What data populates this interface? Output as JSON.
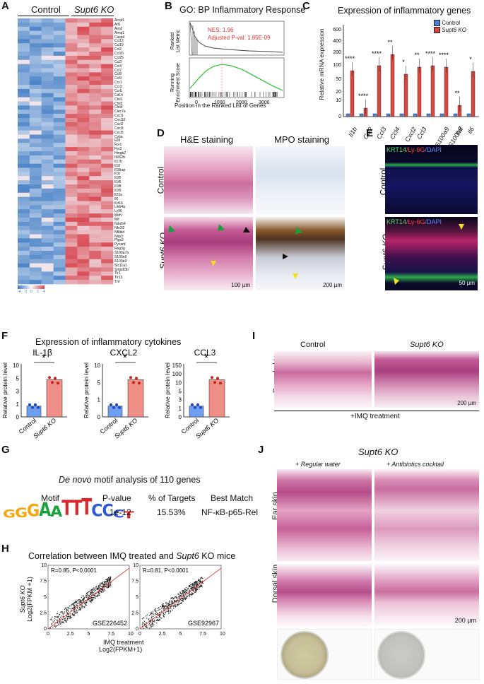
{
  "panel_labels": [
    "A",
    "B",
    "C",
    "D",
    "E",
    "F",
    "G",
    "H",
    "I",
    "J"
  ],
  "A": {
    "group_control": "Control",
    "group_ko": "Supt6 KO",
    "genes": [
      "Acod1",
      "Aif1",
      "Aim2",
      "Aimp1",
      "Casp4",
      "Ccl12",
      "Ccl19",
      "Ccl2",
      "Ccl20",
      "Ccl25",
      "Ccl3",
      "Ccl4",
      "Ccl7",
      "Ccl8",
      "Ccl9",
      "Ccr1",
      "Ccr3",
      "Ccr5",
      "Cd14",
      "Chil1",
      "Chil3",
      "Chil4",
      "Clec7a",
      "Cxcl1",
      "Cxcl10",
      "Cxcl2",
      "Cxcl3",
      "Cxcl5",
      "Cyba",
      "Eli3",
      "Fpr1",
      "Fpr2",
      "Hmgb2",
      "Ifi202b",
      "Il17b",
      "Il18",
      "Il18rap",
      "Il1b",
      "Il1f5",
      "Il1f6",
      "Il1f8",
      "Il1f9",
      "Il23a",
      "Il6",
      "Krt16",
      "Lilrb4a",
      "Ly96",
      "Mefv",
      "Mif",
      "Ndufs4",
      "Nfe2l2",
      "Nfkbid",
      "Nlrp3",
      "Ptgs2",
      "Pycard",
      "Reg3g",
      "S100a7a",
      "S100a8",
      "S100a9",
      "Slc11a1",
      "Smpdl3b",
      "Tlr1",
      "Tlr13",
      "Tnf"
    ],
    "scale_ticks": [
      "-4",
      "-2",
      "0",
      "2",
      "4"
    ],
    "colors": {
      "low": "#3b78c2",
      "mid": "#f4f6fb",
      "high": "#d6434c"
    }
  },
  "B": {
    "title": "GO: BP Inflammatory Response",
    "nes": "NES: 1.96",
    "pval": "Adjusted P-val: 1.85E-09",
    "ylabel_top": "Ranked List Metric",
    "ylabel_bottom": "Running Enrichment Score",
    "xlabel": "Position in the Ranked List of Genes",
    "xticks": [
      "0",
      "1000",
      "2000",
      "3000"
    ],
    "y_top": [
      "5",
      "0"
    ],
    "y_bottom": [
      "0.4",
      "0.2",
      "0.0"
    ]
  },
  "C": {
    "title": "Expression of inflammatory genes",
    "ylabel": "Relative mRNA expression",
    "legend": [
      "Control",
      "Supt6 KO"
    ],
    "genes": [
      "Il1b",
      "Ccl2",
      "Ccl3",
      "Ccl4",
      "Cxcl2",
      "Ccl3",
      "S100a9",
      "S100a8",
      "Tnf",
      "Il6"
    ],
    "stars": [
      "****",
      "****",
      "****",
      "**",
      "*",
      "**",
      "****",
      "****",
      "**",
      "*"
    ],
    "yticks": [
      "600",
      "400",
      "200",
      "100",
      "50",
      "20",
      "10",
      "0"
    ],
    "colors": {
      "control": "#4a7fd4",
      "ko": "#d9473f"
    }
  },
  "D": {
    "he_label": "H&E staining",
    "mpo_label": "MPO staining",
    "row_control": "Control",
    "row_ko": "Supt6 KO",
    "scale1": "100 µm",
    "scale2": "200 µm"
  },
  "E": {
    "stain_krt": "KRT14",
    "stain_ly": "/Ly-6G",
    "stain_dapi": "/DAPI",
    "row_control": "Control",
    "row_ko": "Supt6 KO",
    "scale": "50 µm"
  },
  "F": {
    "title": "Expression of inflammatory cytokines",
    "ylabel": "Relative protein level",
    "xlabels": [
      "Control",
      "Supt6 KO"
    ],
    "star": "*",
    "charts": [
      {
        "name": "IL-1β",
        "yticks": [
          "0",
          "1",
          "3",
          "5",
          "10"
        ],
        "control": 1,
        "ko": 5
      },
      {
        "name": "CXCL2",
        "yticks": [
          "0",
          "1",
          "5",
          "10"
        ],
        "control": 1,
        "ko": 6
      },
      {
        "name": "CCL3",
        "yticks": [
          "0",
          "1",
          "3",
          "5",
          "10",
          "100",
          "150"
        ],
        "control": 1,
        "ko": 80
      }
    ]
  },
  "G": {
    "title_prefix": "De novo",
    "title_rest": " motif analysis of 110 genes",
    "headers": [
      "Motif",
      "P-value",
      "% of Targets",
      "Best Match"
    ],
    "motif": "GGGAATTTCCCT",
    "pvalue": "1e-12",
    "targets": "15.53%",
    "best_match": "NF-κB-p65-Rel"
  },
  "H": {
    "title_a": "Correlation between IMQ treated and ",
    "title_b": "Supt6",
    "title_c": " KO mice",
    "plots": [
      {
        "stats": "R=0.85, P<0.0001",
        "dataset": "GSE226452"
      },
      {
        "stats": "R=0.81, P<0.0001",
        "dataset": "GSE92967"
      }
    ],
    "ylabel_a": "Supt6 KO",
    "ylabel_b": "Log2(FPKM +1)",
    "xlabel_a": "IMQ treatment",
    "xlabel_b": "Log2(FPKM+1)",
    "xticks": [
      "0",
      "2.5",
      "5",
      "7.5",
      "10"
    ],
    "yticks": [
      "0",
      "2.5",
      "5",
      "7.5",
      "10"
    ]
  },
  "I": {
    "control": "Control",
    "ko": "Supt6 KO",
    "row": "Dorsal skin",
    "scale": "200 µm",
    "treatment": "+IMQ treatment"
  },
  "J": {
    "title": "Supt6 KO",
    "col1": "+ Regular water",
    "col2": "+ Antibiotics cocktail",
    "row1": "Ear skin",
    "row2": "Dorsal skin",
    "scale": "200 µm"
  }
}
